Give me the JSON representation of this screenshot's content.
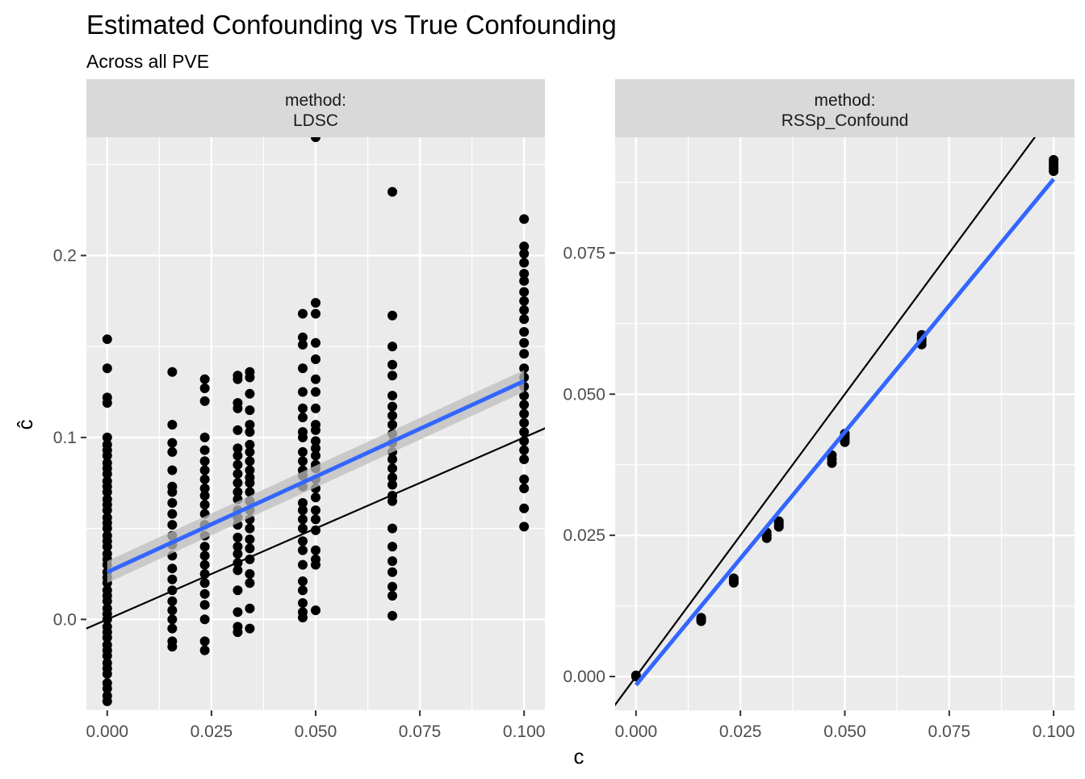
{
  "title": "Estimated Confounding vs True Confounding",
  "subtitle": "Across all PVE",
  "xlabel": "c",
  "ylabel": "ĉ",
  "colors": {
    "fit_line": "#3366ff",
    "ribbon": "#bdbdbd",
    "points": "#000000",
    "identity_line": "#000000",
    "panel_bg": "#ebebeb",
    "strip_bg": "#d9d9d9",
    "grid": "#ffffff"
  },
  "chart_data": [
    {
      "type": "scatter",
      "strip_label_1": "method:",
      "strip_label_2": "LDSC",
      "xlim": [
        -0.005,
        0.105
      ],
      "ylim": [
        -0.05,
        0.265
      ],
      "x_ticks": [
        0.0,
        0.025,
        0.05,
        0.075,
        0.1
      ],
      "x_tick_labels": [
        "0.000",
        "0.025",
        "0.050",
        "0.075",
        "0.100"
      ],
      "y_ticks": [
        0.0,
        0.1,
        0.2
      ],
      "y_tick_labels": [
        "0.0",
        "0.1",
        "0.2"
      ],
      "identity_line": true,
      "fit": {
        "intercept": 0.026,
        "slope": 1.05
      },
      "ribbon_halfwidth": 0.006,
      "groups": [
        {
          "x": 0.0,
          "y": [
            -0.045,
            -0.042,
            -0.038,
            -0.035,
            -0.03,
            -0.027,
            -0.024,
            -0.02,
            -0.017,
            -0.014,
            -0.01,
            -0.007,
            -0.004,
            0.0,
            0.003,
            0.006,
            0.01,
            0.013,
            0.016,
            0.02,
            0.023,
            0.026,
            0.03,
            0.033,
            0.036,
            0.04,
            0.043,
            0.046,
            0.05,
            0.053,
            0.056,
            0.06,
            0.063,
            0.066,
            0.07,
            0.073,
            0.076,
            0.08,
            0.083,
            0.086,
            0.09,
            0.093,
            0.096,
            0.1,
            0.119,
            0.122,
            0.138,
            0.154
          ]
        },
        {
          "x": 0.0156,
          "y": [
            -0.015,
            -0.012,
            -0.005,
            0.0,
            0.005,
            0.01,
            0.016,
            0.022,
            0.028,
            0.035,
            0.041,
            0.046,
            0.052,
            0.058,
            0.064,
            0.07,
            0.073,
            0.082,
            0.092,
            0.097,
            0.107,
            0.136
          ]
        },
        {
          "x": 0.0234,
          "y": [
            -0.017,
            -0.012,
            0.0,
            0.008,
            0.014,
            0.02,
            0.025,
            0.03,
            0.035,
            0.04,
            0.046,
            0.052,
            0.058,
            0.063,
            0.068,
            0.072,
            0.077,
            0.082,
            0.087,
            0.093,
            0.1,
            0.12,
            0.127,
            0.132
          ]
        },
        {
          "x": 0.0313,
          "y": [
            -0.007,
            -0.004,
            0.004,
            0.016,
            0.027,
            0.031,
            0.036,
            0.04,
            0.045,
            0.052,
            0.056,
            0.06,
            0.066,
            0.07,
            0.075,
            0.08,
            0.085,
            0.09,
            0.094,
            0.104,
            0.116,
            0.119,
            0.132,
            0.134
          ]
        },
        {
          "x": 0.0342,
          "y": [
            -0.005,
            0.006,
            0.02,
            0.025,
            0.033,
            0.039,
            0.044,
            0.05,
            0.055,
            0.06,
            0.065,
            0.07,
            0.075,
            0.078,
            0.082,
            0.087,
            0.092,
            0.096,
            0.103,
            0.107,
            0.115,
            0.124,
            0.133,
            0.136
          ]
        },
        {
          "x": 0.0469,
          "y": [
            0.001,
            0.004,
            0.009,
            0.016,
            0.021,
            0.03,
            0.038,
            0.043,
            0.05,
            0.055,
            0.06,
            0.06,
            0.064,
            0.073,
            0.079,
            0.082,
            0.087,
            0.092,
            0.1,
            0.103,
            0.111,
            0.116,
            0.125,
            0.138,
            0.151,
            0.155,
            0.168
          ]
        },
        {
          "x": 0.05,
          "y": [
            0.005,
            0.03,
            0.033,
            0.038,
            0.049,
            0.055,
            0.06,
            0.067,
            0.072,
            0.077,
            0.083,
            0.085,
            0.09,
            0.094,
            0.098,
            0.104,
            0.107,
            0.116,
            0.125,
            0.132,
            0.143,
            0.152,
            0.168,
            0.174,
            0.265
          ]
        },
        {
          "x": 0.0684,
          "y": [
            0.002,
            0.013,
            0.018,
            0.026,
            0.032,
            0.04,
            0.05,
            0.065,
            0.068,
            0.074,
            0.078,
            0.083,
            0.088,
            0.092,
            0.097,
            0.102,
            0.107,
            0.112,
            0.117,
            0.123,
            0.134,
            0.14,
            0.15,
            0.167,
            0.235
          ]
        },
        {
          "x": 0.1,
          "y": [
            0.051,
            0.061,
            0.072,
            0.077,
            0.088,
            0.093,
            0.098,
            0.103,
            0.108,
            0.113,
            0.118,
            0.123,
            0.128,
            0.133,
            0.138,
            0.146,
            0.152,
            0.158,
            0.165,
            0.17,
            0.175,
            0.18,
            0.186,
            0.19,
            0.196,
            0.201,
            0.205,
            0.22
          ]
        }
      ]
    },
    {
      "type": "scatter",
      "strip_label_1": "method:",
      "strip_label_2": "RSSp_Confound",
      "xlim": [
        -0.005,
        0.105
      ],
      "ylim": [
        -0.006,
        0.0955
      ],
      "x_ticks": [
        0.0,
        0.025,
        0.05,
        0.075,
        0.1
      ],
      "x_tick_labels": [
        "0.000",
        "0.025",
        "0.050",
        "0.075",
        "0.100"
      ],
      "y_ticks": [
        0.0,
        0.025,
        0.05,
        0.075
      ],
      "y_tick_labels": [
        "0.000",
        "0.025",
        "0.050",
        "0.075"
      ],
      "identity_line": true,
      "fit": {
        "intercept": -0.0015,
        "slope": 0.8958
      },
      "ribbon_halfwidth": 0.0003,
      "groups": [
        {
          "x": 0.0,
          "y": [
            0.0,
            0.0002
          ]
        },
        {
          "x": 0.0156,
          "y": [
            0.0098,
            0.0101,
            0.0104
          ]
        },
        {
          "x": 0.0234,
          "y": [
            0.0166,
            0.017,
            0.0174
          ]
        },
        {
          "x": 0.0313,
          "y": [
            0.0245,
            0.025,
            0.0255
          ]
        },
        {
          "x": 0.0342,
          "y": [
            0.0265,
            0.027,
            0.0275
          ]
        },
        {
          "x": 0.0469,
          "y": [
            0.0378,
            0.0385,
            0.0392
          ]
        },
        {
          "x": 0.05,
          "y": [
            0.0415,
            0.042,
            0.0425,
            0.043
          ]
        },
        {
          "x": 0.0684,
          "y": [
            0.0588,
            0.0594,
            0.06,
            0.0605
          ]
        },
        {
          "x": 0.1,
          "y": [
            0.0895,
            0.09,
            0.0905,
            0.091,
            0.0915
          ]
        }
      ]
    }
  ]
}
